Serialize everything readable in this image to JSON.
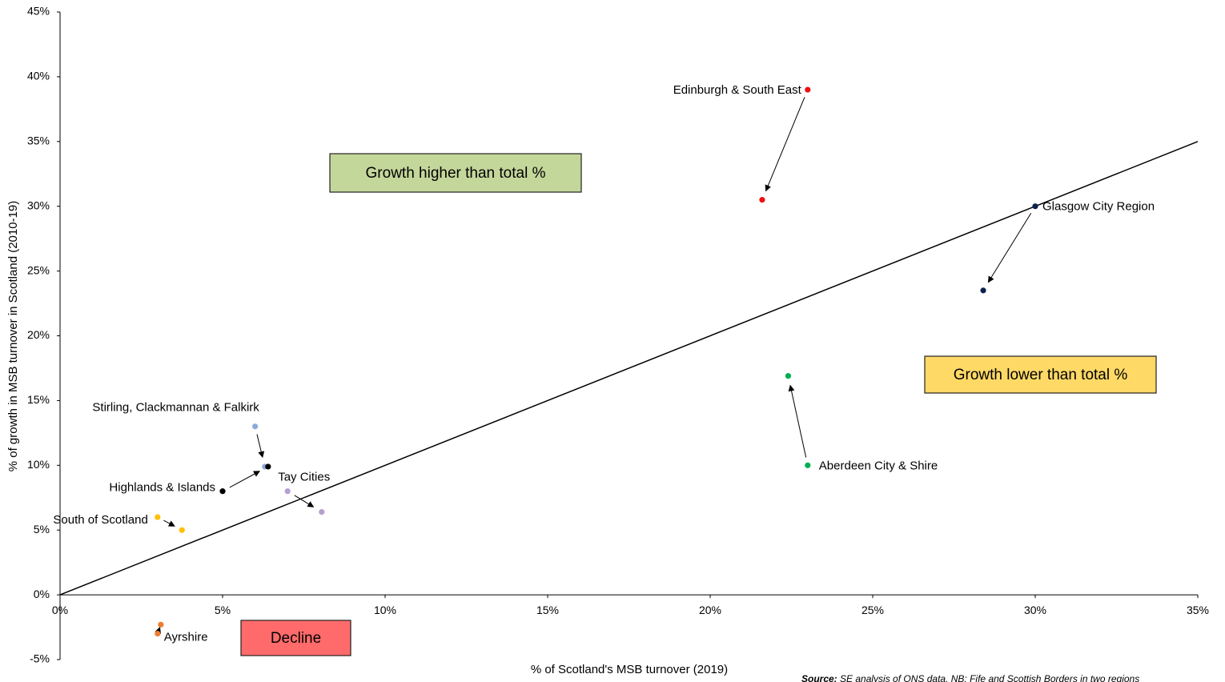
{
  "chart_data": {
    "type": "scatter",
    "x_label": "% of Scotland's MSB turnover (2019)",
    "y_label": "% of  growth in MSB turnover in Scotland (2010-19)",
    "source_label": "Source:",
    "source": "SE analysis of ONS data. NB: Fife and Scottish Borders in two regions",
    "xlim": [
      0,
      35
    ],
    "ylim": [
      -5,
      45
    ],
    "xticks": [
      {
        "value": 0,
        "label": "0%"
      },
      {
        "value": 5,
        "label": "5%"
      },
      {
        "value": 10,
        "label": "10%"
      },
      {
        "value": 15,
        "label": "15%"
      },
      {
        "value": 20,
        "label": "20%"
      },
      {
        "value": 25,
        "label": "25%"
      },
      {
        "value": 30,
        "label": "30%"
      },
      {
        "value": 35,
        "label": "35%"
      }
    ],
    "yticks": [
      {
        "value": -5,
        "label": "-5%"
      },
      {
        "value": 0,
        "label": "0%"
      },
      {
        "value": 5,
        "label": "5%"
      },
      {
        "value": 10,
        "label": "10%"
      },
      {
        "value": 15,
        "label": "15%"
      },
      {
        "value": 20,
        "label": "20%"
      },
      {
        "value": 25,
        "label": "25%"
      },
      {
        "value": 30,
        "label": "30%"
      },
      {
        "value": 35,
        "label": "35%"
      },
      {
        "value": 40,
        "label": "40%"
      },
      {
        "value": 45,
        "label": "45%"
      }
    ],
    "reference_line": {
      "x": [
        0,
        35
      ],
      "y": [
        0,
        35
      ]
    },
    "series": [
      {
        "name": "Edinburgh & South East",
        "color": "#ee1111",
        "x": [
          23.0,
          21.6
        ],
        "y": [
          39.0,
          30.5
        ]
      },
      {
        "name": "Glasgow City Region",
        "color": "#0b2150",
        "x": [
          30.0,
          28.4
        ],
        "y": [
          30.0,
          23.5
        ]
      },
      {
        "name": "Aberdeen City & Shire",
        "color": "#00b050",
        "x": [
          23.0,
          22.4
        ],
        "y": [
          10.0,
          16.9
        ]
      },
      {
        "name": "Stirling, Clackmannan & Falkirk",
        "color": "#8eaadb",
        "x": [
          6.0,
          6.3
        ],
        "y": [
          13.0,
          9.9
        ]
      },
      {
        "name": "Highlands & Islands",
        "color": "#000000",
        "x": [
          5.0,
          6.4
        ],
        "y": [
          8.0,
          9.9
        ]
      },
      {
        "name": "Tay Cities",
        "color": "#b4a0d2",
        "x": [
          7.0,
          8.05
        ],
        "y": [
          8.0,
          6.4
        ]
      },
      {
        "name": "South of Scotland",
        "color": "#ffc000",
        "x": [
          3.0,
          3.75
        ],
        "y": [
          6.0,
          5.0
        ]
      },
      {
        "name": "Ayrshire",
        "color": "#ed7d31",
        "x": [
          3.0,
          3.1
        ],
        "y": [
          -3.0,
          -2.3
        ]
      }
    ],
    "annotations": [
      {
        "text": "Growth higher than total %",
        "color": "#c4d79b"
      },
      {
        "text": "Growth lower than total %",
        "color": "#ffd966"
      },
      {
        "text": "Decline",
        "color": "#ff6b6b"
      }
    ]
  }
}
